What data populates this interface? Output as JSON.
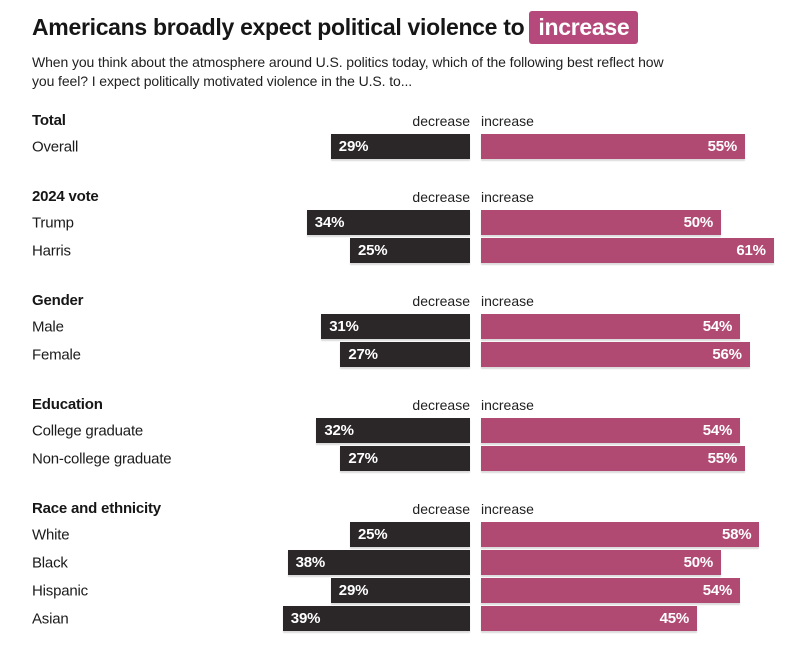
{
  "title": {
    "text": "Americans broadly expect political violence to",
    "highlight": "increase"
  },
  "subtitle": {
    "line1": "When you think about the atmosphere around U.S. politics today, which of the following best reflect how",
    "line2": "you feel? I expect politically motivated violence in the U.S. to..."
  },
  "column_headers": {
    "decrease": "decrease",
    "increase": "increase"
  },
  "colors": {
    "highlight_bg": "#b5497b",
    "decrease_bar": "#2b2627",
    "increase_bar": "#b04a72",
    "text": "#1b1b1b"
  },
  "chart_data": {
    "type": "bar",
    "layout": "diverging-horizontal",
    "unit": "%",
    "series_names": [
      "decrease",
      "increase"
    ],
    "title": "Americans broadly expect political violence to increase",
    "sections": [
      {
        "label": "Total",
        "rows": [
          {
            "label": "Overall",
            "decrease": 29,
            "increase": 55
          }
        ]
      },
      {
        "label": "2024 vote",
        "rows": [
          {
            "label": "Trump",
            "decrease": 34,
            "increase": 50
          },
          {
            "label": "Harris",
            "decrease": 25,
            "increase": 61
          }
        ]
      },
      {
        "label": "Gender",
        "rows": [
          {
            "label": "Male",
            "decrease": 31,
            "increase": 54
          },
          {
            "label": "Female",
            "decrease": 27,
            "increase": 56
          }
        ]
      },
      {
        "label": "Education",
        "rows": [
          {
            "label": "College graduate",
            "decrease": 32,
            "increase": 54
          },
          {
            "label": "Non-college graduate",
            "decrease": 27,
            "increase": 55
          }
        ]
      },
      {
        "label": "Race and ethnicity",
        "rows": [
          {
            "label": "White",
            "decrease": 25,
            "increase": 58
          },
          {
            "label": "Black",
            "decrease": 38,
            "increase": 50
          },
          {
            "label": "Hispanic",
            "decrease": 29,
            "increase": 54
          },
          {
            "label": "Asian",
            "decrease": 39,
            "increase": 45
          }
        ]
      }
    ]
  }
}
